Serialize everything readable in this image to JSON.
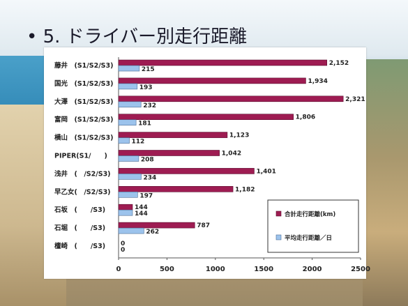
{
  "slide": {
    "title": "• 5.  ドライバー別走行距離"
  },
  "colors": {
    "total_bar": "#9e1c52",
    "avg_bar": "#9cc3ec"
  },
  "chart_data": {
    "type": "bar",
    "orientation": "horizontal",
    "categories": [
      "藤井　(S1/S2/S3)",
      "国光　(S1/S2/S3)",
      "大澤　(S1/S2/S3)",
      "富岡　(S1/S2/S3)",
      "横山　(S1/S2/S3)",
      "PIPER(S1/　　)",
      "浅井　(　/S2/S3)",
      "早乙女(　/S2/S3)",
      "石坂　(　　/S3)",
      "石堀　(　　/S3)",
      "檀崎　(　　/S3)"
    ],
    "series": [
      {
        "name": "合計走行距離(km)",
        "values": [
          2152,
          1934,
          2321,
          1806,
          1123,
          1042,
          1401,
          1182,
          144,
          787,
          0
        ],
        "labels": [
          "2,152",
          "1,934",
          "2,321",
          "1,806",
          "1,123",
          "1,042",
          "1,401",
          "1,182",
          "144",
          "787",
          "0"
        ]
      },
      {
        "name": "平均走行距離／日",
        "values": [
          215,
          193,
          232,
          181,
          112,
          208,
          234,
          197,
          144,
          262,
          0
        ],
        "labels": [
          "215",
          "193",
          "232",
          "181",
          "112",
          "208",
          "234",
          "197",
          "144",
          "262",
          "0"
        ]
      }
    ],
    "xlim": [
      0,
      2500
    ],
    "xticks": [
      "0",
      "500",
      "1000",
      "1500",
      "2000",
      "2500"
    ],
    "legend_position": "bottom-right"
  }
}
